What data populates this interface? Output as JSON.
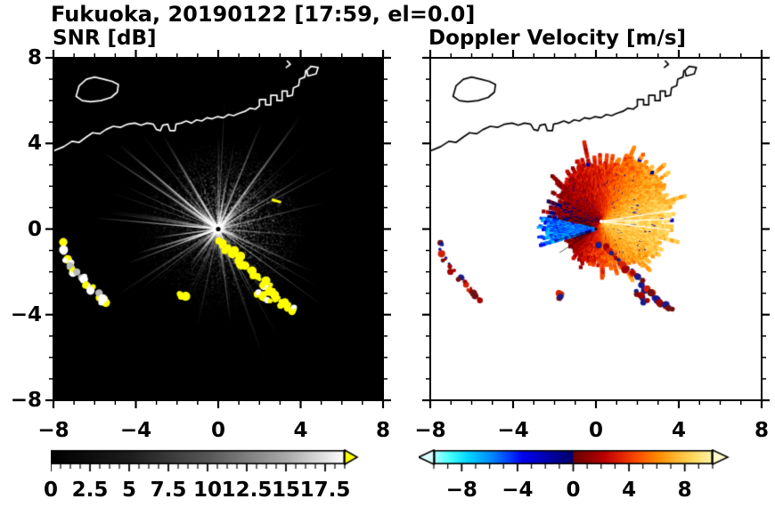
{
  "title": "Fukuoka, 20190122 [17:59, el=0.0]",
  "panels": {
    "snr": {
      "label": "SNR [dB]"
    },
    "doppler": {
      "label": "Doppler Velocity [m/s]"
    }
  },
  "chart_data": [
    {
      "type": "heatmap",
      "panel_id": "snr",
      "title": "SNR [dB]",
      "description": "Radar PPI of signal-to-noise ratio: black background, bright white radial beam streaks from radar at origin, diffuse gray echo haze within ~4.5 km, yellow high-SNR ground clutter arcs lower-left and a clutter chain running southeast from the radar, white coastline of Hakata Bay.",
      "xlim": [
        -8,
        8
      ],
      "ylim": [
        -8,
        8
      ],
      "xticks": [
        -8,
        -4,
        0,
        4,
        8
      ],
      "xtick_labels": [
        "−8",
        "−4",
        "0",
        "4",
        "8"
      ],
      "yticks": [
        8,
        4,
        0,
        -4,
        -8
      ],
      "ytick_labels": [
        "8",
        "4",
        "0",
        "−4",
        "−8"
      ],
      "minor_tick_step": 1,
      "grid": false,
      "background_color": "#000000",
      "radar_center": [
        0,
        0
      ],
      "diffuse_echo_max_radius": 4.5,
      "radial_streaks": {
        "count": 105,
        "min_length": 0.8,
        "max_length": 6.8,
        "color": "#ffffff"
      },
      "ground_clutter": {
        "color": "#ffff00"
      },
      "extra_marks": [
        {
          "x": 3.05,
          "y": 1.25,
          "dx": -0.45,
          "dy": 0.12
        }
      ],
      "coastline_color": "#ffffff",
      "colorbar": {
        "range": [
          0,
          18.75
        ],
        "tick_values": [
          0,
          2.5,
          5,
          7.5,
          10,
          12.5,
          15,
          17.5
        ],
        "tick_labels": [
          "0",
          "2.5",
          "5",
          "7.5",
          "10",
          "12.5",
          "15",
          "17.5"
        ],
        "major_step": 2.5,
        "minor_step": 0.625,
        "stops": [
          {
            "v": 0,
            "c": "#000000"
          },
          {
            "v": 5,
            "c": "#1c1c1c"
          },
          {
            "v": 10,
            "c": "#565656"
          },
          {
            "v": 15,
            "c": "#a8a8a8"
          },
          {
            "v": 18.75,
            "c": "#ffffff"
          }
        ],
        "over_arrow_color": "#ffff00"
      }
    },
    {
      "type": "heatmap",
      "panel_id": "doppler",
      "title": "Doppler Velocity [m/s]",
      "description": "Radar PPI of Doppler velocity on white background: spiky echo blob east/northeast of the radar, pale-yellow (+8 m/s) to the east grading to orange and dark red toward north/northwest, a narrow blue negative-velocity wedge pointing west from the radar, red/dark-red clutter arcs lower-left and a clutter chain to the southeast, black coastline.",
      "xlim": [
        -8,
        8
      ],
      "ylim": [
        -8,
        8
      ],
      "xticks": [
        -8,
        -4,
        0,
        4,
        8
      ],
      "xtick_labels": [
        "−8",
        "−4",
        "0",
        "4",
        "8"
      ],
      "yticks": [
        8,
        4,
        0,
        -4,
        -8
      ],
      "ytick_labels": [
        "8",
        "4",
        "0",
        "−4",
        "−8"
      ],
      "minor_tick_step": 1,
      "grid": false,
      "background_color": "#ffffff",
      "radar_center": [
        0,
        0
      ],
      "echo_blob": {
        "center": [
          0.25,
          0.35
        ],
        "radius_by_angle_deg": [
          [
            0,
            3.0
          ],
          [
            30,
            3.1
          ],
          [
            50,
            3.3
          ],
          [
            70,
            2.9
          ],
          [
            90,
            2.7
          ],
          [
            110,
            2.6
          ],
          [
            130,
            2.3
          ],
          [
            150,
            1.8
          ],
          [
            170,
            1.5
          ],
          [
            190,
            1.4
          ],
          [
            210,
            1.5
          ],
          [
            230,
            1.7
          ],
          [
            250,
            1.6
          ],
          [
            270,
            1.7
          ],
          [
            290,
            1.9
          ],
          [
            310,
            2.2
          ],
          [
            330,
            2.6
          ],
          [
            360,
            3.0
          ]
        ],
        "velocity_by_angle_deg": [
          [
            0,
            8.6
          ],
          [
            45,
            6.6
          ],
          [
            90,
            3.6
          ],
          [
            135,
            1.6
          ],
          [
            180,
            0.4
          ],
          [
            225,
            1.2
          ],
          [
            270,
            4.2
          ],
          [
            315,
            7.0
          ],
          [
            360,
            8.6
          ]
        ],
        "velocity_noise": 1.3
      },
      "negative_wedge": {
        "angle_deg": [
          168,
          197
        ],
        "radius": [
          0.15,
          2.6
        ],
        "velocity_range": [
          -7.5,
          -3.5
        ]
      },
      "white_ray_angles_deg": [
        -7,
        2,
        9
      ],
      "thin_ray_angles_deg": [
        148,
        157,
        196,
        201,
        205,
        213
      ],
      "ground_clutter": {
        "colors": [
          "#a00000",
          "#d42000",
          "#1a1a8c",
          "#701010"
        ]
      },
      "coastline_color": "#000000",
      "colorbar": {
        "range": [
          -10,
          10
        ],
        "tick_values": [
          -8,
          -4,
          0,
          4,
          8
        ],
        "tick_labels": [
          "−8",
          "−4",
          "0",
          "4",
          "8"
        ],
        "major_step": 4,
        "minor_step": 1,
        "stops": [
          {
            "v": -10,
            "c": "#b3ffff"
          },
          {
            "v": -8.8,
            "c": "#40ffff"
          },
          {
            "v": -7.5,
            "c": "#00d4ff"
          },
          {
            "v": -6,
            "c": "#0090ff"
          },
          {
            "v": -4.8,
            "c": "#0048ff"
          },
          {
            "v": -3.6,
            "c": "#0000ee"
          },
          {
            "v": -2.2,
            "c": "#0000bb"
          },
          {
            "v": -1,
            "c": "#00008b"
          },
          {
            "v": -0.05,
            "c": "#000070"
          },
          {
            "v": 0.05,
            "c": "#700000"
          },
          {
            "v": 1,
            "c": "#8b0000"
          },
          {
            "v": 2.2,
            "c": "#bb0000"
          },
          {
            "v": 3.6,
            "c": "#e62800"
          },
          {
            "v": 4.8,
            "c": "#ff5500"
          },
          {
            "v": 6,
            "c": "#ff8800"
          },
          {
            "v": 7.5,
            "c": "#ffbb33"
          },
          {
            "v": 8.8,
            "c": "#ffdd66"
          },
          {
            "v": 10,
            "c": "#fff2aa"
          }
        ],
        "under_arrow_color": "#d8ffff",
        "over_arrow_color": "#fffbcc"
      }
    }
  ],
  "coastline_paths": [
    {
      "closed": true,
      "points": [
        [
          -6.9,
          6.2
        ],
        [
          -6.75,
          6.7
        ],
        [
          -6.4,
          7.0
        ],
        [
          -6.0,
          7.1
        ],
        [
          -5.55,
          7.0
        ],
        [
          -5.15,
          6.9
        ],
        [
          -4.85,
          6.75
        ],
        [
          -4.9,
          6.4
        ],
        [
          -5.2,
          6.15
        ],
        [
          -5.7,
          6.0
        ],
        [
          -6.2,
          5.95
        ],
        [
          -6.6,
          6.0
        ]
      ]
    },
    {
      "closed": false,
      "points": [
        [
          -8,
          3.65
        ],
        [
          -7.5,
          3.85
        ],
        [
          -7.1,
          4.1
        ],
        [
          -6.75,
          4.05
        ],
        [
          -6.4,
          4.3
        ],
        [
          -6.1,
          4.5
        ],
        [
          -5.75,
          4.45
        ],
        [
          -5.45,
          4.65
        ],
        [
          -5.1,
          4.8
        ],
        [
          -4.75,
          4.75
        ],
        [
          -4.4,
          4.9
        ],
        [
          -4.05,
          4.95
        ],
        [
          -3.75,
          4.85
        ],
        [
          -3.45,
          4.95
        ],
        [
          -3.15,
          4.9
        ],
        [
          -3.0,
          4.65
        ],
        [
          -2.8,
          4.6
        ],
        [
          -2.7,
          4.85
        ],
        [
          -2.45,
          4.9
        ],
        [
          -2.35,
          4.6
        ],
        [
          -2.1,
          4.6
        ],
        [
          -2.05,
          4.9
        ],
        [
          -1.8,
          4.95
        ],
        [
          -1.55,
          5.05
        ],
        [
          -1.3,
          4.95
        ],
        [
          -1.05,
          5.1
        ],
        [
          -0.8,
          5.05
        ],
        [
          -0.55,
          5.2
        ],
        [
          -0.3,
          5.15
        ],
        [
          -0.05,
          5.25
        ],
        [
          0.25,
          5.2
        ],
        [
          0.5,
          5.35
        ],
        [
          0.75,
          5.3
        ],
        [
          1.0,
          5.4
        ],
        [
          1.3,
          5.5
        ],
        [
          1.55,
          5.65
        ],
        [
          1.8,
          5.6
        ],
        [
          2.0,
          5.75
        ],
        [
          2.0,
          6.05
        ],
        [
          2.3,
          6.05
        ],
        [
          2.3,
          5.8
        ],
        [
          2.55,
          5.8
        ],
        [
          2.55,
          6.25
        ],
        [
          2.85,
          6.25
        ],
        [
          2.85,
          6.0
        ],
        [
          3.1,
          6.0
        ],
        [
          3.1,
          6.45
        ],
        [
          3.35,
          6.45
        ],
        [
          3.35,
          6.2
        ],
        [
          3.6,
          6.25
        ],
        [
          3.65,
          6.6
        ],
        [
          3.9,
          6.7
        ],
        [
          3.95,
          7.0
        ],
        [
          4.2,
          7.1
        ],
        [
          4.25,
          7.4
        ]
      ]
    },
    {
      "closed": true,
      "points": [
        [
          4.35,
          7.15
        ],
        [
          4.75,
          7.25
        ],
        [
          4.85,
          7.55
        ],
        [
          4.5,
          7.6
        ],
        [
          4.3,
          7.4
        ]
      ]
    },
    {
      "closed": false,
      "points": [
        [
          3.3,
          7.55
        ],
        [
          3.5,
          7.7
        ],
        [
          3.35,
          7.85
        ]
      ]
    }
  ],
  "clutter_chains": [
    {
      "points": [
        [
          -7.5,
          -0.7
        ],
        [
          -7.48,
          -1.05
        ],
        [
          -7.35,
          -1.4
        ],
        [
          -7.15,
          -1.7
        ],
        [
          -6.95,
          -2.0
        ]
      ]
    },
    {
      "points": [
        [
          -6.55,
          -2.25
        ],
        [
          -6.35,
          -2.55
        ],
        [
          -6.1,
          -2.8
        ],
        [
          -5.85,
          -3.1
        ],
        [
          -5.6,
          -3.35
        ]
      ]
    },
    {
      "points": [
        [
          0.15,
          -0.65
        ],
        [
          0.45,
          -0.9
        ],
        [
          0.75,
          -1.1
        ],
        [
          1.0,
          -1.35
        ],
        [
          1.2,
          -1.6
        ],
        [
          1.45,
          -1.85
        ],
        [
          1.7,
          -2.05
        ],
        [
          1.95,
          -2.25
        ],
        [
          2.2,
          -2.5
        ],
        [
          2.45,
          -2.75
        ],
        [
          2.6,
          -3.0
        ],
        [
          2.85,
          -3.25
        ],
        [
          3.1,
          -3.45
        ],
        [
          3.35,
          -3.6
        ],
        [
          3.6,
          -3.8
        ]
      ]
    },
    {
      "points": [
        [
          1.95,
          -2.95
        ],
        [
          2.2,
          -3.15
        ],
        [
          2.4,
          -3.35
        ]
      ]
    },
    {
      "points": [
        [
          -1.8,
          -3.1
        ],
        [
          -1.7,
          -3.25
        ]
      ]
    }
  ]
}
